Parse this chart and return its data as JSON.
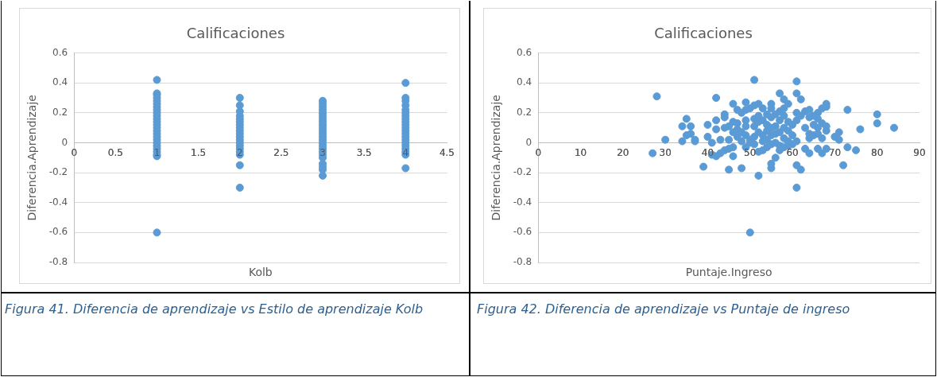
{
  "chart_data": [
    {
      "type": "scatter",
      "title": "Calificaciones",
      "xlabel": "Kolb",
      "ylabel": "Diferencia.Aprendizaje",
      "color": "#5b9bd5",
      "marker": "circle",
      "grid": "y",
      "x": [
        1,
        1,
        1,
        1,
        1,
        1,
        1,
        1,
        1,
        1,
        1,
        1,
        1,
        1,
        1,
        1,
        1,
        1,
        1,
        1,
        1,
        1,
        1,
        1,
        1,
        2,
        2,
        2,
        2,
        2,
        2,
        2,
        2,
        2,
        2,
        2,
        2,
        2,
        2,
        2,
        2,
        2,
        2,
        2,
        3,
        3,
        3,
        3,
        3,
        3,
        3,
        3,
        3,
        3,
        3,
        3,
        3,
        3,
        3,
        3,
        3,
        3,
        3,
        3,
        3,
        3,
        3,
        3,
        4,
        4,
        4,
        4,
        4,
        4,
        4,
        4,
        4,
        4,
        4,
        4,
        4,
        4,
        4,
        4,
        4,
        4,
        4,
        4,
        4
      ],
      "values": [
        0.42,
        0.33,
        0.32,
        0.3,
        0.28,
        0.26,
        0.24,
        0.22,
        0.2,
        0.18,
        0.16,
        0.14,
        0.12,
        0.1,
        0.08,
        0.06,
        0.04,
        0.02,
        0,
        -0.02,
        -0.04,
        -0.06,
        -0.08,
        -0.09,
        -0.6,
        0.3,
        0.25,
        0.21,
        0.18,
        0.16,
        0.14,
        0.12,
        0.1,
        0.08,
        0.06,
        0.04,
        0.02,
        0,
        -0.02,
        -0.04,
        -0.06,
        -0.08,
        -0.15,
        -0.3,
        0.28,
        0.26,
        0.24,
        0.22,
        0.2,
        0.18,
        0.16,
        0.14,
        0.12,
        0.1,
        0.08,
        0.06,
        0.04,
        0.02,
        0,
        -0.02,
        -0.04,
        -0.06,
        -0.08,
        -0.1,
        -0.14,
        -0.16,
        -0.18,
        -0.22,
        0.4,
        0.3,
        0.28,
        0.25,
        0.22,
        0.2,
        0.18,
        0.16,
        0.14,
        0.12,
        0.1,
        0.08,
        0.06,
        0.04,
        0.02,
        0,
        -0.02,
        -0.04,
        -0.06,
        -0.08,
        -0.17
      ],
      "xlim": [
        0,
        4.5
      ],
      "xticks": [
        0,
        0.5,
        1,
        1.5,
        2,
        2.5,
        3,
        3.5,
        4,
        4.5
      ],
      "ylim": [
        -0.8,
        0.6
      ],
      "yticks": [
        -0.8,
        -0.6,
        -0.4,
        -0.2,
        0,
        0.2,
        0.4,
        0.6
      ],
      "annotations": [
        "Figura 41. Diferencia de aprendizaje vs Estilo de aprendizaje Kolb"
      ]
    },
    {
      "type": "scatter",
      "title": "Calificaciones",
      "xlabel": "Puntaje.Ingreso",
      "ylabel": "Diferencia.Aprendizaje",
      "color": "#5b9bd5",
      "marker": "circle",
      "grid": "y",
      "x": [
        27,
        28,
        30,
        34,
        34,
        35,
        35,
        36,
        36,
        37,
        37,
        39,
        40,
        40,
        41,
        41,
        42,
        42,
        42,
        42,
        43,
        43,
        44,
        44,
        44,
        44,
        45,
        45,
        45,
        45,
        46,
        46,
        46,
        46,
        46,
        47,
        47,
        47,
        47,
        48,
        48,
        48,
        48,
        49,
        49,
        49,
        49,
        49,
        49,
        50,
        50,
        50,
        50,
        51,
        51,
        51,
        51,
        51,
        51,
        52,
        52,
        52,
        52,
        52,
        52,
        53,
        53,
        53,
        53,
        53,
        54,
        54,
        54,
        54,
        54,
        55,
        55,
        55,
        55,
        55,
        55,
        55,
        55,
        56,
        56,
        56,
        56,
        56,
        57,
        57,
        57,
        57,
        57,
        57,
        58,
        58,
        58,
        58,
        58,
        58,
        59,
        59,
        59,
        59,
        59,
        60,
        60,
        60,
        61,
        61,
        61,
        61,
        61,
        61,
        61,
        62,
        62,
        62,
        63,
        63,
        63,
        64,
        64,
        64,
        64,
        64,
        65,
        65,
        65,
        66,
        66,
        66,
        66,
        66,
        67,
        67,
        67,
        67,
        68,
        68,
        68,
        68,
        68,
        70,
        71,
        71,
        72,
        73,
        73,
        75,
        76,
        80,
        80,
        84
      ],
      "values": [
        -0.07,
        0.31,
        0.02,
        0.01,
        0.11,
        0.16,
        0.05,
        0.06,
        0.11,
        0.02,
        0.01,
        -0.16,
        0.12,
        0.04,
        0,
        -0.08,
        -0.09,
        0.3,
        0.15,
        0.09,
        -0.07,
        0.02,
        0.19,
        0.17,
        0.1,
        -0.05,
        -0.18,
        0.11,
        -0.04,
        0.02,
        0.07,
        -0.09,
        0.26,
        0.14,
        -0.03,
        0.04,
        0.22,
        0.13,
        0.09,
        0.07,
        0.01,
        -0.17,
        0.2,
        0.27,
        0.15,
        0.11,
        0.05,
        -0.03,
        0.22,
        0,
        0.23,
        0.02,
        -0.6,
        0.42,
        0.25,
        0.16,
        0.11,
        0.04,
        -0.01,
        0.26,
        0.18,
        0.14,
        0.07,
        -0.06,
        -0.22,
        0.23,
        0.15,
        0.05,
        0.01,
        -0.05,
        0.19,
        0.12,
        0.08,
        0.02,
        -0.03,
        0.26,
        0.23,
        0.17,
        0.1,
        0.05,
        -0.01,
        -0.14,
        -0.17,
        0.19,
        0.11,
        0.06,
        0,
        -0.1,
        0.33,
        0.21,
        0.15,
        0.07,
        -0.02,
        -0.05,
        0.29,
        0.23,
        0.18,
        0.1,
        0.03,
        -0.03,
        0.26,
        0.14,
        0.08,
        0.01,
        -0.02,
        0.12,
        0.05,
        -0.01,
        0.41,
        0.33,
        0.2,
        0.15,
        0.01,
        -0.15,
        -0.3,
        0.18,
        -0.18,
        0.29,
        0.21,
        0.1,
        -0.04,
        0.22,
        0.17,
        0.06,
        0.03,
        -0.07,
        0.18,
        0.12,
        0.05,
        0.2,
        0.16,
        0.1,
        0.06,
        -0.04,
        0.23,
        0.13,
        0.03,
        -0.07,
        0.26,
        0.24,
        0.11,
        0.08,
        -0.04,
        0.04,
        0.07,
        0.02,
        -0.15,
        0.22,
        -0.03,
        -0.05,
        0.09,
        0.19,
        0.13,
        0.1
      ],
      "xlim": [
        0,
        90
      ],
      "xticks": [
        0,
        10,
        20,
        30,
        40,
        50,
        60,
        70,
        80,
        90
      ],
      "ylim": [
        -0.8,
        0.6
      ],
      "yticks": [
        -0.8,
        -0.6,
        -0.4,
        -0.2,
        0,
        0.2,
        0.4,
        0.6
      ],
      "annotations": [
        "Figura 42. Diferencia de aprendizaje vs Puntaje de ingreso"
      ]
    }
  ]
}
